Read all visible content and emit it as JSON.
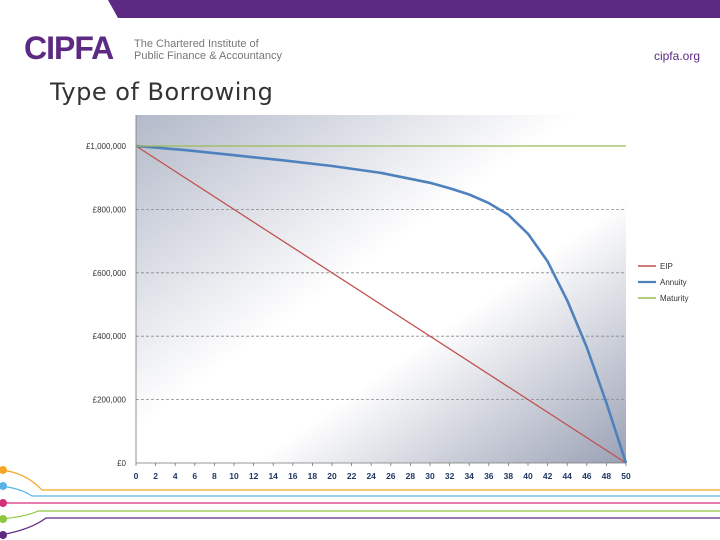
{
  "header": {
    "logo_text": "CIPFA",
    "logo_subtitle_line1": "The Chartered Institute of",
    "logo_subtitle_line2": "Public Finance & Accountancy",
    "site": "cipfa.org",
    "accent_color": "#5c2a82"
  },
  "slide": {
    "title": "Type of Borrowing"
  },
  "chart_data": {
    "type": "line",
    "title": "",
    "xlabel": "",
    "ylabel": "",
    "x_ticks": [
      0,
      2,
      4,
      6,
      8,
      10,
      12,
      14,
      16,
      18,
      20,
      22,
      24,
      26,
      28,
      30,
      32,
      34,
      36,
      38,
      40,
      42,
      44,
      46,
      48,
      50
    ],
    "xlim": [
      0,
      50
    ],
    "ylim": [
      0,
      1000000
    ],
    "y_ticks": [
      {
        "value": 0,
        "label": "£0"
      },
      {
        "value": 200000,
        "label": "£200,000"
      },
      {
        "value": 400000,
        "label": "£400,000"
      },
      {
        "value": 600000,
        "label": "£600,000"
      },
      {
        "value": 800000,
        "label": "£800,000"
      },
      {
        "value": 1000000,
        "label": "£1,000,000"
      }
    ],
    "grid": "horizontal-dashed",
    "legend_position": "right",
    "series": [
      {
        "name": "EIP",
        "color": "#c0504d",
        "x": [
          0,
          50
        ],
        "y": [
          1000000,
          0
        ]
      },
      {
        "name": "Annuity",
        "color": "#4f81bd",
        "x": [
          0,
          5,
          10,
          15,
          20,
          25,
          30,
          32,
          34,
          36,
          38,
          40,
          42,
          44,
          46,
          48,
          50
        ],
        "y": [
          1000000,
          987000,
          971000,
          955000,
          937000,
          915000,
          884000,
          867000,
          847000,
          820000,
          783000,
          723000,
          636000,
          513000,
          365000,
          190000,
          0
        ]
      },
      {
        "name": "Maturity",
        "color": "#9bbb59",
        "x": [
          0,
          50
        ],
        "y": [
          1000000,
          1000000
        ]
      }
    ]
  }
}
